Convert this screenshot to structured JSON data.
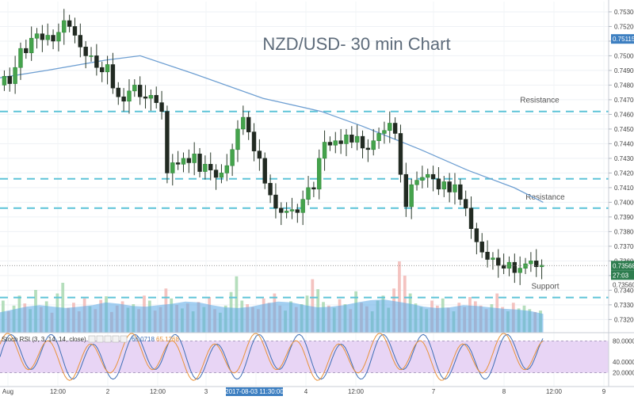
{
  "chart_data": [
    {
      "type": "candlestick",
      "title": "NZD/USD- 30 min Chart",
      "ylim": [
        0.7311,
        0.7537
      ],
      "y_ticks": [
        "0.75300",
        "0.75200",
        "0.75100",
        "0.75000",
        "0.74900",
        "0.74800",
        "0.74700",
        "0.74600",
        "0.74500",
        "0.74400",
        "0.74300",
        "0.74200",
        "0.74100",
        "0.74000",
        "0.73900",
        "0.73800",
        "0.73700",
        "0.73600",
        "0.73500",
        "0.73400",
        "0.73300",
        "0.73200"
      ],
      "x_ticks": [
        "Aug",
        "12:00",
        "2",
        "12:00",
        "3",
        "12:00",
        "4",
        "12:00",
        "7",
        "8",
        "12:00",
        "9"
      ],
      "x_cursor_label": "2017-08-03 11:30:00",
      "price_tags": {
        "top": "0.75115",
        "last": "0.73568",
        "timer": "27:03",
        "bottom": "0.73560"
      },
      "levels": [
        {
          "label": "Resistance",
          "value": 0.7462
        },
        {
          "label": "",
          "value": 0.7416
        },
        {
          "label": "Resistance",
          "value": 0.7396
        },
        {
          "label": "Support",
          "value": 0.7335
        }
      ],
      "closes": [
        0.7486,
        0.7481,
        0.7492,
        0.7505,
        0.7502,
        0.7512,
        0.7515,
        0.7511,
        0.7514,
        0.751,
        0.7516,
        0.7524,
        0.752,
        0.7514,
        0.7506,
        0.75,
        0.75,
        0.7492,
        0.7489,
        0.7494,
        0.7478,
        0.7472,
        0.7469,
        0.7476,
        0.748,
        0.7472,
        0.7471,
        0.7473,
        0.7468,
        0.7462,
        0.742,
        0.7427,
        0.7426,
        0.743,
        0.7427,
        0.7433,
        0.7421,
        0.7426,
        0.7422,
        0.7417,
        0.742,
        0.7425,
        0.7436,
        0.745,
        0.7458,
        0.7448,
        0.7435,
        0.743,
        0.7413,
        0.7405,
        0.7396,
        0.7393,
        0.7394,
        0.7395,
        0.7393,
        0.7402,
        0.741,
        0.7409,
        0.743,
        0.7441,
        0.7439,
        0.7442,
        0.744,
        0.7446,
        0.7441,
        0.7445,
        0.7437,
        0.7436,
        0.7442,
        0.7447,
        0.7449,
        0.7454,
        0.7447,
        0.7419,
        0.7397,
        0.7412,
        0.7415,
        0.7417,
        0.7419,
        0.7416,
        0.7409,
        0.7414,
        0.7407,
        0.7412,
        0.7402,
        0.7396,
        0.7382,
        0.7373,
        0.7366,
        0.7361,
        0.7362,
        0.7357,
        0.7355,
        0.7359,
        0.7352,
        0.7355,
        0.7358,
        0.736,
        0.7356,
        0.7357
      ],
      "ma_line": [
        [
          0,
          0.7485
        ],
        [
          0.08,
          0.749
        ],
        [
          0.18,
          0.7497
        ],
        [
          0.24,
          0.75
        ],
        [
          0.33,
          0.7488
        ],
        [
          0.45,
          0.7471
        ],
        [
          0.55,
          0.7462
        ],
        [
          0.62,
          0.7452
        ],
        [
          0.72,
          0.7436
        ],
        [
          0.8,
          0.7422
        ],
        [
          0.88,
          0.741
        ],
        [
          0.93,
          0.74
        ]
      ],
      "volume": [
        0.45,
        0.3,
        0.38,
        0.52,
        0.41,
        0.33,
        0.6,
        0.36,
        0.44,
        0.28,
        0.55,
        0.7,
        0.35,
        0.42,
        0.3,
        0.48,
        0.37,
        0.33,
        0.46,
        0.51,
        0.29,
        0.38,
        0.44,
        0.35,
        0.4,
        0.33,
        0.52,
        0.45,
        0.31,
        0.36,
        0.62,
        0.48,
        0.39,
        0.34,
        0.41,
        0.3,
        0.43,
        0.36,
        0.5,
        0.33,
        0.28,
        0.38,
        0.57,
        0.79,
        0.45,
        0.4,
        0.36,
        0.33,
        0.48,
        0.42,
        0.55,
        0.38,
        0.31,
        0.44,
        0.36,
        0.4,
        0.52,
        0.75,
        0.61,
        0.43,
        0.38,
        0.35,
        0.47,
        0.4,
        0.33,
        0.58,
        0.42,
        0.37,
        0.3,
        0.45,
        0.52,
        0.35,
        0.62,
        1.0,
        0.8,
        0.55,
        0.41,
        0.36,
        0.33,
        0.45,
        0.38,
        0.48,
        0.35,
        0.3,
        0.42,
        0.36,
        0.5,
        0.44,
        0.38,
        0.33,
        0.4,
        0.55,
        0.36,
        0.3,
        0.42,
        0.34,
        0.38,
        0.33,
        0.29,
        0.31
      ],
      "volume_ma": [
        0.28,
        0.32,
        0.36,
        0.38,
        0.36,
        0.34,
        0.36,
        0.38,
        0.42,
        0.4,
        0.37,
        0.36,
        0.38,
        0.4,
        0.43,
        0.42,
        0.38,
        0.35,
        0.34,
        0.36,
        0.4,
        0.43,
        0.42,
        0.38,
        0.35,
        0.36,
        0.38,
        0.42,
        0.45,
        0.46,
        0.43,
        0.4,
        0.36,
        0.34,
        0.35,
        0.38,
        0.37,
        0.35,
        0.33,
        0.32,
        0.3,
        0.26
      ]
    },
    {
      "type": "line",
      "title": "Stoch RSI (3, 3, 14, 14, close)",
      "series": [
        {
          "name": "",
          "last": "66.0718",
          "color": "#3f6fb5"
        },
        {
          "name": "",
          "last": "65.1268",
          "color": "#e8923a"
        }
      ],
      "ylim": [
        0,
        100
      ],
      "y_ticks": [
        "80.0000",
        "40.0000",
        "20.0000"
      ],
      "bands": [
        20,
        80
      ]
    }
  ]
}
